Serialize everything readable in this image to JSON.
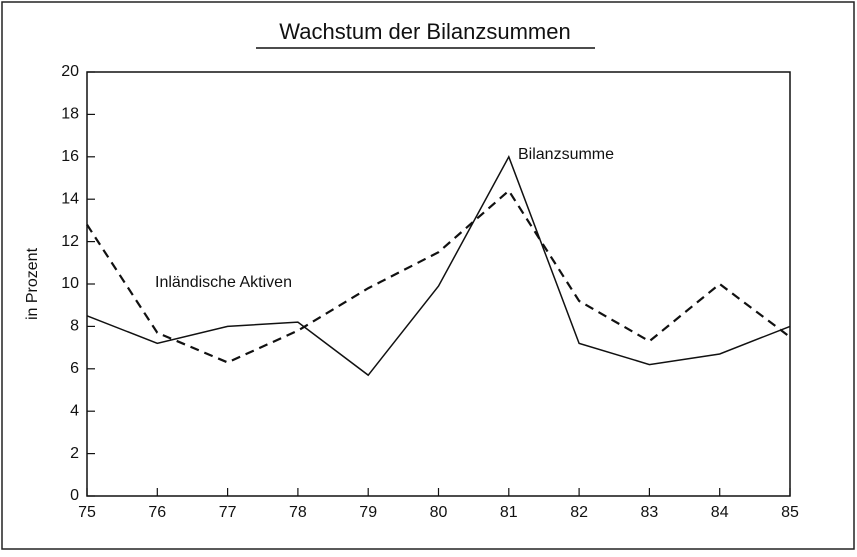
{
  "chart_data": {
    "type": "line",
    "title": "Wachstum der Bilanzsummen",
    "y_label": "in Prozent",
    "categories": [
      "75",
      "76",
      "77",
      "78",
      "79",
      "80",
      "81",
      "82",
      "83",
      "84",
      "85"
    ],
    "series": [
      {
        "name": "Bilanzsumme",
        "color": "#111111",
        "dash": "solid",
        "values": [
          8.5,
          7.2,
          8.0,
          8.2,
          5.7,
          9.9,
          16.0,
          7.2,
          6.2,
          6.7,
          8.0
        ]
      },
      {
        "name": "Inländische Aktiven",
        "color": "#111111",
        "dash": "dashed",
        "values": [
          12.8,
          7.7,
          6.3,
          7.8,
          9.8,
          11.5,
          14.4,
          9.2,
          7.3,
          10.0,
          7.5
        ]
      }
    ],
    "ylim": [
      0,
      20
    ],
    "yticks": [
      0,
      2,
      4,
      6,
      8,
      10,
      12,
      14,
      16,
      18,
      20
    ],
    "grid": false
  }
}
